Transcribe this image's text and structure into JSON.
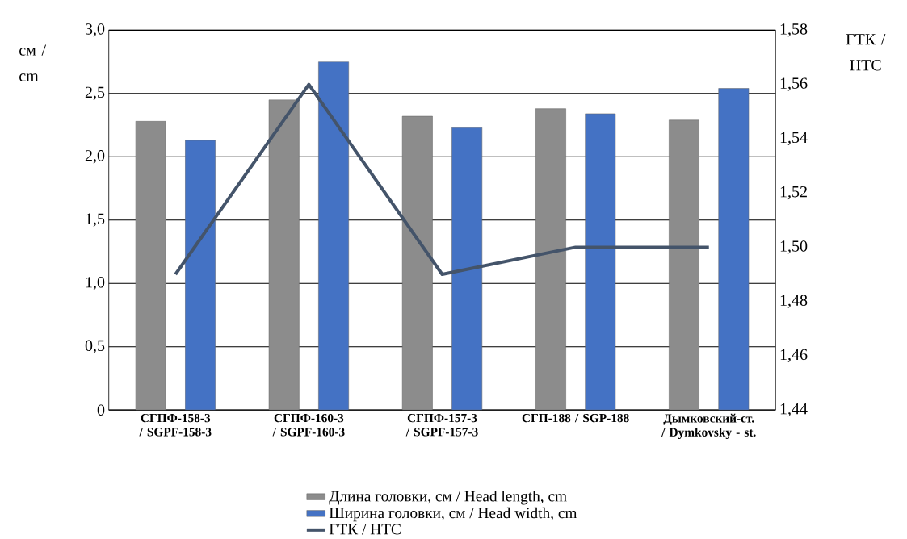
{
  "chart_data": {
    "type": "bar",
    "ylabel": "см / cm",
    "y2label": "ГТК / HTC",
    "categories": [
      "СГПФ-158-3 / SGPF-158-3",
      "СГПФ-160-3 / SGPF-160-3",
      "СГПФ-157-3 / SGPF-157-3",
      "СГП-188 / SGP-188",
      "Дымковский-ст. / Dymkovsky - st."
    ],
    "series": [
      {
        "name": "Длина головки, см / Head length, cm",
        "color": "#8c8c8c",
        "values": [
          2.28,
          2.45,
          2.32,
          2.38,
          2.29
        ]
      },
      {
        "name": "Ширина головки, см / Head width, cm",
        "color": "#4472c4",
        "values": [
          2.13,
          2.75,
          2.23,
          2.34,
          2.54
        ]
      },
      {
        "name": "ГТК / HTC",
        "type": "line",
        "axis": "y2",
        "color": "#44546a",
        "values": [
          1.49,
          1.56,
          1.49,
          1.5,
          1.5
        ]
      }
    ],
    "ylim": [
      0,
      3
    ],
    "yticks": [
      0,
      {
        "value": 0.5,
        "label": "0,5"
      },
      {
        "value": 1,
        "label": "1,0"
      },
      {
        "value": 1.5,
        "label": "1,5"
      },
      {
        "value": 2,
        "label": "2,0"
      },
      {
        "value": 2.5,
        "label": "2,5"
      },
      {
        "value": 3,
        "label": "3,0"
      }
    ],
    "y2lim": [
      1.44,
      1.58
    ],
    "y2ticks": [
      {
        "value": 1.44,
        "label": "1,44"
      },
      {
        "value": 1.46,
        "label": "1,46"
      },
      {
        "value": 1.48,
        "label": "1,48"
      },
      {
        "value": 1.5,
        "label": "1,50"
      },
      {
        "value": 1.52,
        "label": "1,52"
      },
      {
        "value": 1.54,
        "label": "1,54"
      },
      {
        "value": 1.56,
        "label": "1,56"
      },
      {
        "value": 1.58,
        "label": "1,58"
      }
    ],
    "grid": "y",
    "legend": "bottom",
    "marker": "none",
    "line_style": "solid"
  }
}
